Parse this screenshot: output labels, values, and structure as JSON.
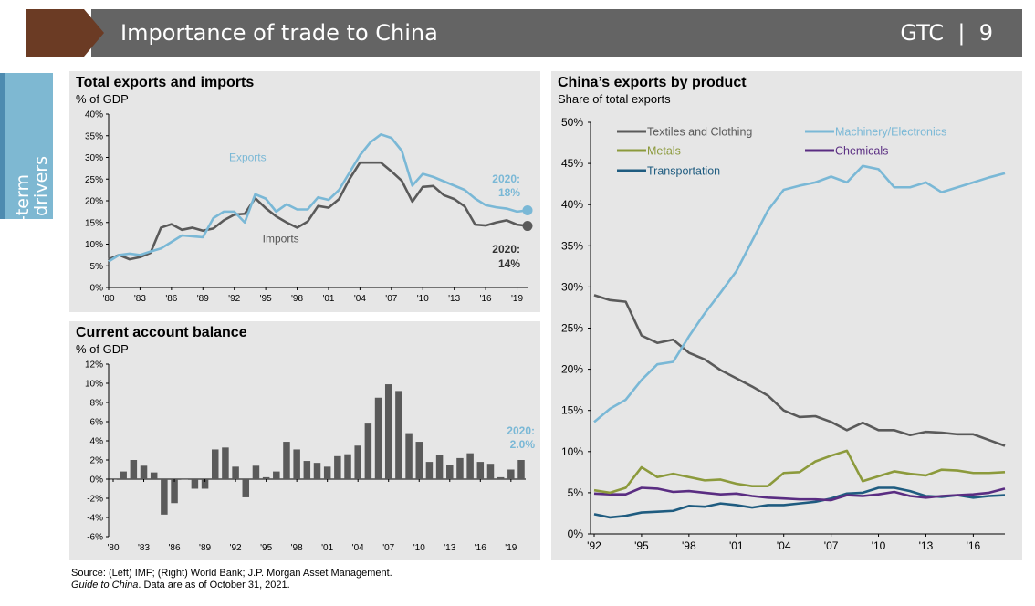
{
  "header": {
    "title": "Importance of trade to China",
    "badge": "GTC  |  9",
    "side_tab": [
      "Long-term",
      "growth drivers"
    ]
  },
  "colors": {
    "exports_blue": "#7ab8d6",
    "imports_gray": "#5a5a5a",
    "metals_olive": "#8c9a3c",
    "chemicals_purple": "#5a2d82",
    "transport_teal": "#1f5c80",
    "bar_gray": "#5a5a5a",
    "panel_bg": "#e6e6e6"
  },
  "source": {
    "line1": "Source: (Left) IMF; (Right) World Bank; J.P. Morgan Asset Management.",
    "line2_italic": "Guide to China",
    "line2_rest": ". Data are as of October 31, 2021."
  },
  "chart_data": [
    {
      "type": "line",
      "title": "Total exports and imports",
      "subtitle": "% of GDP",
      "x": [
        1980,
        1981,
        1982,
        1983,
        1984,
        1985,
        1986,
        1987,
        1988,
        1989,
        1990,
        1991,
        1992,
        1993,
        1994,
        1995,
        1996,
        1997,
        1998,
        1999,
        2000,
        2001,
        2002,
        2003,
        2004,
        2005,
        2006,
        2007,
        2008,
        2009,
        2010,
        2011,
        2012,
        2013,
        2014,
        2015,
        2016,
        2017,
        2018,
        2019,
        2020
      ],
      "series": [
        {
          "name": "Exports",
          "values": [
            6,
            7.5,
            7.8,
            7.5,
            8.3,
            9,
            10.5,
            12,
            11.8,
            11.6,
            16,
            17.5,
            17.5,
            15,
            21.5,
            20.5,
            17.5,
            19.2,
            18,
            18,
            20.8,
            20.2,
            22.5,
            26.5,
            30.5,
            33.5,
            35.3,
            34.5,
            31.5,
            23.5,
            26.2,
            25.5,
            24.5,
            23.5,
            22.5,
            20.5,
            19,
            18.5,
            18.2,
            17.5,
            17.8
          ]
        },
        {
          "name": "Imports",
          "values": [
            6.5,
            7.5,
            6.5,
            7,
            8,
            13.8,
            14.6,
            13.3,
            13.8,
            13.1,
            13.6,
            15.5,
            16.8,
            17,
            20.6,
            18.3,
            16.4,
            15,
            13.8,
            15.2,
            18.8,
            18.4,
            20.4,
            25,
            28.8,
            28.8,
            28.8,
            26.8,
            24.6,
            19.8,
            23.2,
            23.4,
            21.3,
            20.4,
            18.7,
            14.5,
            14.3,
            15,
            15.5,
            14.5,
            14.2
          ]
        }
      ],
      "labels": {
        "exports": "Exports",
        "imports": "Imports",
        "exports_end": [
          "2020:",
          "18%"
        ],
        "imports_end": [
          "2020:",
          "14%"
        ]
      },
      "yticks": [
        "0%",
        "5%",
        "10%",
        "15%",
        "20%",
        "25%",
        "30%",
        "35%",
        "40%"
      ],
      "xticks": [
        "'80",
        "'83",
        "'86",
        "'89",
        "'92",
        "'95",
        "'98",
        "'01",
        "'04",
        "'07",
        "'10",
        "'13",
        "'16",
        "'19"
      ],
      "ylim": [
        0,
        40
      ]
    },
    {
      "type": "bar",
      "title": "Current account balance",
      "subtitle": "% of GDP",
      "x": [
        1980,
        1981,
        1982,
        1983,
        1984,
        1985,
        1986,
        1987,
        1988,
        1989,
        1990,
        1991,
        1992,
        1993,
        1994,
        1995,
        1996,
        1997,
        1998,
        1999,
        2000,
        2001,
        2002,
        2003,
        2004,
        2005,
        2006,
        2007,
        2008,
        2009,
        2010,
        2011,
        2012,
        2013,
        2014,
        2015,
        2016,
        2017,
        2018,
        2019,
        2020
      ],
      "values": [
        0,
        0.8,
        2,
        1.4,
        0.7,
        -3.7,
        -2.5,
        0,
        -1,
        -1,
        3.1,
        3.3,
        1.3,
        -1.9,
        1.4,
        0.2,
        0.8,
        3.9,
        3.1,
        1.9,
        1.7,
        1.3,
        2.4,
        2.6,
        3.5,
        5.8,
        8.5,
        9.9,
        9.2,
        4.8,
        3.9,
        1.8,
        2.5,
        1.5,
        2.2,
        2.7,
        1.8,
        1.6,
        0.2,
        1,
        2
      ],
      "end_label": [
        "2020:",
        "2.0%"
      ],
      "yticks": [
        "-6%",
        "-4%",
        "-2%",
        "0%",
        "2%",
        "4%",
        "6%",
        "8%",
        "10%",
        "12%"
      ],
      "xticks": [
        "'80",
        "'83",
        "'86",
        "'89",
        "'92",
        "'95",
        "'98",
        "'01",
        "'04",
        "'07",
        "'10",
        "'13",
        "'16",
        "'19"
      ],
      "ylim": [
        -6,
        12
      ]
    },
    {
      "type": "line",
      "title": "China’s exports by product",
      "subtitle": "Share of total exports",
      "x": [
        1992,
        1993,
        1994,
        1995,
        1996,
        1997,
        1998,
        1999,
        2000,
        2001,
        2002,
        2003,
        2004,
        2005,
        2006,
        2007,
        2008,
        2009,
        2010,
        2011,
        2012,
        2013,
        2014,
        2015,
        2016,
        2017,
        2018
      ],
      "series": [
        {
          "name": "Textiles and Clothing",
          "values": [
            29,
            28.4,
            28.2,
            24.1,
            23.2,
            23.6,
            22,
            21.2,
            19.9,
            18.9,
            17.9,
            16.8,
            15,
            14.2,
            14.3,
            13.6,
            12.6,
            13.5,
            12.6,
            12.6,
            12,
            12.4,
            12.3,
            12.1,
            12.1,
            11.4,
            10.7
          ]
        },
        {
          "name": "Machinery/Electronics",
          "values": [
            13.6,
            15.2,
            16.3,
            18.7,
            20.6,
            20.9,
            24,
            26.8,
            29.3,
            31.9,
            35.6,
            39.3,
            41.8,
            42.3,
            42.7,
            43.4,
            42.7,
            44.7,
            44.3,
            42.1,
            42.1,
            42.7,
            41.5,
            42.1,
            42.7,
            43.3,
            43.8
          ]
        },
        {
          "name": "Metals",
          "values": [
            5.3,
            5,
            5.6,
            8.1,
            6.9,
            7.3,
            6.9,
            6.5,
            6.6,
            6.1,
            5.8,
            5.8,
            7.4,
            7.5,
            8.8,
            9.5,
            10.1,
            6.4,
            7,
            7.6,
            7.3,
            7.1,
            7.8,
            7.7,
            7.4,
            7.4,
            7.5
          ]
        },
        {
          "name": "Chemicals",
          "values": [
            4.9,
            4.8,
            4.8,
            5.6,
            5.5,
            5.1,
            5.2,
            5,
            4.8,
            4.9,
            4.6,
            4.4,
            4.3,
            4.2,
            4.2,
            4.1,
            4.7,
            4.6,
            4.8,
            5.1,
            4.6,
            4.4,
            4.6,
            4.7,
            4.8,
            5,
            5.5
          ]
        },
        {
          "name": "Transportation",
          "values": [
            2.4,
            2,
            2.2,
            2.6,
            2.7,
            2.8,
            3.4,
            3.3,
            3.7,
            3.5,
            3.2,
            3.5,
            3.5,
            3.7,
            3.9,
            4.3,
            4.9,
            5,
            5.6,
            5.6,
            5.2,
            4.6,
            4.5,
            4.7,
            4.4,
            4.6,
            4.7
          ]
        }
      ],
      "legend": [
        "Textiles and Clothing",
        "Machinery/Electronics",
        "Metals",
        "Chemicals",
        "Transportation"
      ],
      "yticks": [
        "0%",
        "5%",
        "10%",
        "15%",
        "20%",
        "25%",
        "30%",
        "35%",
        "40%",
        "45%",
        "50%"
      ],
      "xticks": [
        "'92",
        "'95",
        "'98",
        "'01",
        "'04",
        "'07",
        "'10",
        "'13",
        "'16"
      ],
      "ylim": [
        0,
        50
      ]
    }
  ]
}
